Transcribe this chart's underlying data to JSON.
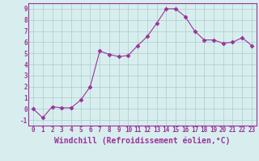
{
  "x": [
    0,
    1,
    2,
    3,
    4,
    5,
    6,
    7,
    8,
    9,
    10,
    11,
    12,
    13,
    14,
    15,
    16,
    17,
    18,
    19,
    20,
    21,
    22,
    23
  ],
  "y": [
    0.0,
    -0.8,
    0.2,
    0.1,
    0.1,
    0.8,
    2.0,
    5.2,
    4.9,
    4.7,
    4.8,
    5.7,
    6.5,
    7.7,
    9.0,
    9.0,
    8.3,
    7.0,
    6.2,
    6.2,
    5.9,
    6.0,
    6.4,
    5.7
  ],
  "line_color": "#993399",
  "marker": "D",
  "marker_size": 2.5,
  "bg_color": "#d8eeee",
  "grid_color": "#aacccc",
  "xlabel": "Windchill (Refroidissement éolien,°C)",
  "xlim": [
    -0.5,
    23.5
  ],
  "ylim": [
    -1.5,
    9.5
  ],
  "yticks": [
    -1,
    0,
    1,
    2,
    3,
    4,
    5,
    6,
    7,
    8,
    9
  ],
  "xticks": [
    0,
    1,
    2,
    3,
    4,
    5,
    6,
    7,
    8,
    9,
    10,
    11,
    12,
    13,
    14,
    15,
    16,
    17,
    18,
    19,
    20,
    21,
    22,
    23
  ],
  "tick_fontsize": 5.5,
  "xlabel_fontsize": 7.0
}
